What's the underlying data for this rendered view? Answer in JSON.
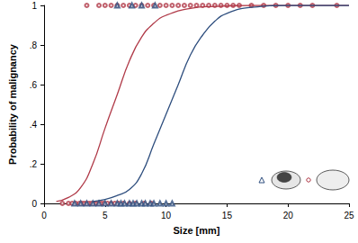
{
  "chart_data": {
    "type": "scatter",
    "xlabel": "Size [mm]",
    "ylabel": "Probability of malignancy",
    "xlim": [
      0,
      25
    ],
    "xticks": [
      0,
      5,
      10,
      15,
      20,
      25
    ],
    "ylim": [
      0,
      1
    ],
    "yticks": [
      0,
      {
        "value": 0.2,
        "label": ".2"
      },
      {
        "value": 0.4,
        "label": ".4"
      },
      {
        "value": 0.6,
        "label": ".6"
      },
      {
        "value": 0.8,
        "label": ".8"
      },
      1
    ],
    "grid": false,
    "series": [
      {
        "type": "scatter",
        "color": "#b03a48",
        "marker": "circle",
        "x": [
          1.5,
          2,
          2.3,
          2.6,
          2.9,
          3.1,
          3.3,
          3.5,
          3.7,
          3.9,
          4.1,
          4.3,
          4.5,
          4.7,
          4.9,
          5.2,
          5.5,
          5.8,
          6.1,
          6.5,
          7,
          7.5,
          8.2,
          8.8
        ],
        "values": [
          0,
          0,
          0,
          0,
          0,
          0,
          0,
          0,
          0,
          0,
          0,
          0,
          0,
          0,
          0,
          0,
          0,
          0,
          0,
          0,
          0,
          0,
          0,
          0
        ]
      },
      {
        "type": "scatter",
        "color": "#2e4e7e",
        "marker": "triangle",
        "x": [
          2.5,
          3,
          3.5,
          4,
          4.5,
          5,
          5.5,
          6,
          6.3,
          6.6,
          7,
          7.3,
          7.6,
          8,
          8.3,
          8.7,
          9,
          9.5,
          10,
          10.5
        ],
        "values": [
          0,
          0,
          0,
          0,
          0,
          0,
          0,
          0,
          0,
          0,
          0,
          0,
          0,
          0,
          0,
          0,
          0,
          0,
          0,
          0
        ]
      },
      {
        "type": "scatter",
        "color": "#b03a48",
        "marker": "circle",
        "x": [
          3.5,
          4.5,
          5,
          5.5,
          6,
          6.5,
          7,
          7.5,
          8,
          8.5,
          9,
          9.5,
          10,
          10.5,
          11,
          11.5,
          12,
          12.5,
          13,
          13.5,
          14,
          14.5,
          15,
          15.5,
          16,
          17,
          18,
          19,
          20,
          21,
          22,
          24
        ],
        "values": [
          1,
          1,
          1,
          1,
          1,
          1,
          1,
          1,
          1,
          1,
          1,
          1,
          1,
          1,
          1,
          1,
          1,
          1,
          1,
          1,
          1,
          1,
          1,
          1,
          1,
          1,
          1,
          1,
          1,
          1,
          1,
          1
        ]
      },
      {
        "type": "scatter",
        "color": "#2e4e7e",
        "marker": "triangle",
        "x": [
          6,
          7.2,
          8,
          9.1
        ],
        "values": [
          1,
          1,
          1,
          1
        ]
      },
      {
        "type": "line",
        "color": "#b03a48",
        "line_style": "solid",
        "x": [
          1,
          2,
          3,
          4,
          5,
          6,
          7,
          8,
          9,
          10,
          12,
          14,
          17,
          20,
          25
        ],
        "values": [
          0.01,
          0.03,
          0.08,
          0.2,
          0.38,
          0.55,
          0.72,
          0.84,
          0.91,
          0.95,
          0.985,
          0.995,
          1,
          1,
          1
        ]
      },
      {
        "type": "line",
        "color": "#2e4e7e",
        "line_style": "solid",
        "x": [
          4,
          5,
          6,
          7,
          8,
          9,
          10,
          11,
          12,
          13,
          14,
          15,
          17,
          20,
          25
        ],
        "values": [
          0.01,
          0.02,
          0.04,
          0.07,
          0.15,
          0.3,
          0.45,
          0.6,
          0.75,
          0.85,
          0.92,
          0.96,
          0.99,
          1,
          1
        ]
      }
    ]
  }
}
